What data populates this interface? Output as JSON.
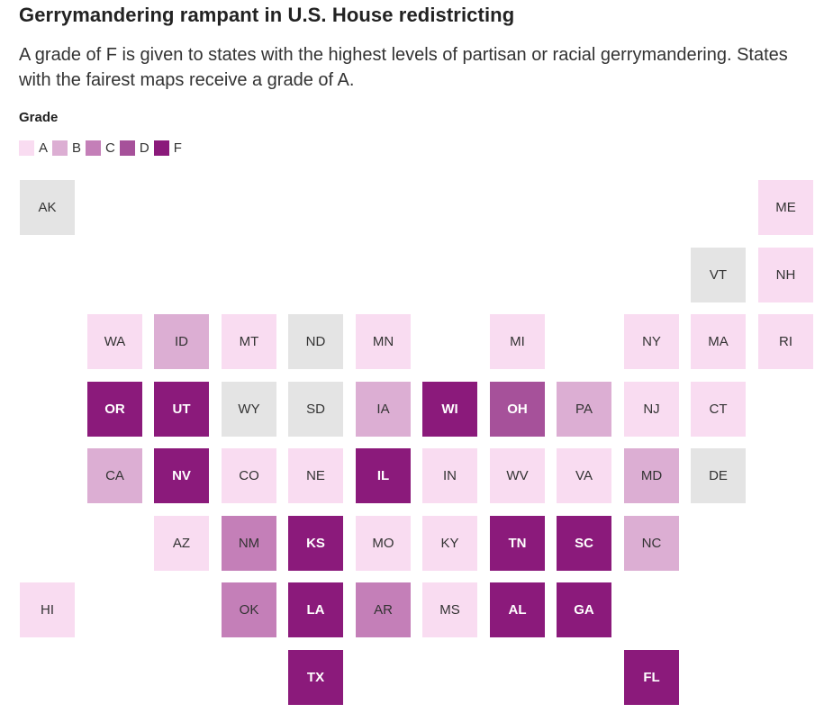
{
  "title": "Gerrymandering rampant in U.S. House redistricting",
  "subtitle": "A grade of F is given to states with the highest levels of partisan or racial gerrymandering. States with the fairest maps receive a grade of A.",
  "legend": {
    "title": "Grade",
    "items": [
      {
        "label": "A",
        "color": "#f9dcf1"
      },
      {
        "label": "B",
        "color": "#dcaed3"
      },
      {
        "label": "C",
        "color": "#c47fb8"
      },
      {
        "label": "D",
        "color": "#a6519a"
      },
      {
        "label": "F",
        "color": "#8b1a7b"
      }
    ]
  },
  "no_grade_color": "#e4e4e4",
  "states": [
    {
      "abbr": "AK",
      "row": 0,
      "col": 0,
      "grade": null
    },
    {
      "abbr": "ME",
      "row": 0,
      "col": 11,
      "grade": "A"
    },
    {
      "abbr": "VT",
      "row": 1,
      "col": 10,
      "grade": null
    },
    {
      "abbr": "NH",
      "row": 1,
      "col": 11,
      "grade": "A"
    },
    {
      "abbr": "WA",
      "row": 2,
      "col": 1,
      "grade": "A"
    },
    {
      "abbr": "ID",
      "row": 2,
      "col": 2,
      "grade": "B"
    },
    {
      "abbr": "MT",
      "row": 2,
      "col": 3,
      "grade": "A"
    },
    {
      "abbr": "ND",
      "row": 2,
      "col": 4,
      "grade": null
    },
    {
      "abbr": "MN",
      "row": 2,
      "col": 5,
      "grade": "A"
    },
    {
      "abbr": "MI",
      "row": 2,
      "col": 7,
      "grade": "A"
    },
    {
      "abbr": "NY",
      "row": 2,
      "col": 9,
      "grade": "A"
    },
    {
      "abbr": "MA",
      "row": 2,
      "col": 10,
      "grade": "A"
    },
    {
      "abbr": "RI",
      "row": 2,
      "col": 11,
      "grade": "A"
    },
    {
      "abbr": "OR",
      "row": 3,
      "col": 1,
      "grade": "F"
    },
    {
      "abbr": "UT",
      "row": 3,
      "col": 2,
      "grade": "F"
    },
    {
      "abbr": "WY",
      "row": 3,
      "col": 3,
      "grade": null
    },
    {
      "abbr": "SD",
      "row": 3,
      "col": 4,
      "grade": null
    },
    {
      "abbr": "IA",
      "row": 3,
      "col": 5,
      "grade": "B"
    },
    {
      "abbr": "WI",
      "row": 3,
      "col": 6,
      "grade": "F"
    },
    {
      "abbr": "OH",
      "row": 3,
      "col": 7,
      "grade": "D"
    },
    {
      "abbr": "PA",
      "row": 3,
      "col": 8,
      "grade": "B"
    },
    {
      "abbr": "NJ",
      "row": 3,
      "col": 9,
      "grade": "A"
    },
    {
      "abbr": "CT",
      "row": 3,
      "col": 10,
      "grade": "A"
    },
    {
      "abbr": "CA",
      "row": 4,
      "col": 1,
      "grade": "B"
    },
    {
      "abbr": "NV",
      "row": 4,
      "col": 2,
      "grade": "F"
    },
    {
      "abbr": "CO",
      "row": 4,
      "col": 3,
      "grade": "A"
    },
    {
      "abbr": "NE",
      "row": 4,
      "col": 4,
      "grade": "A"
    },
    {
      "abbr": "IL",
      "row": 4,
      "col": 5,
      "grade": "F"
    },
    {
      "abbr": "IN",
      "row": 4,
      "col": 6,
      "grade": "A"
    },
    {
      "abbr": "WV",
      "row": 4,
      "col": 7,
      "grade": "A"
    },
    {
      "abbr": "VA",
      "row": 4,
      "col": 8,
      "grade": "A"
    },
    {
      "abbr": "MD",
      "row": 4,
      "col": 9,
      "grade": "B"
    },
    {
      "abbr": "DE",
      "row": 4,
      "col": 10,
      "grade": null
    },
    {
      "abbr": "AZ",
      "row": 5,
      "col": 2,
      "grade": "A"
    },
    {
      "abbr": "NM",
      "row": 5,
      "col": 3,
      "grade": "C"
    },
    {
      "abbr": "KS",
      "row": 5,
      "col": 4,
      "grade": "F"
    },
    {
      "abbr": "MO",
      "row": 5,
      "col": 5,
      "grade": "A"
    },
    {
      "abbr": "KY",
      "row": 5,
      "col": 6,
      "grade": "A"
    },
    {
      "abbr": "TN",
      "row": 5,
      "col": 7,
      "grade": "F"
    },
    {
      "abbr": "SC",
      "row": 5,
      "col": 8,
      "grade": "F"
    },
    {
      "abbr": "NC",
      "row": 5,
      "col": 9,
      "grade": "B"
    },
    {
      "abbr": "HI",
      "row": 6,
      "col": 0,
      "grade": "A"
    },
    {
      "abbr": "OK",
      "row": 6,
      "col": 3,
      "grade": "C"
    },
    {
      "abbr": "LA",
      "row": 6,
      "col": 4,
      "grade": "F"
    },
    {
      "abbr": "AR",
      "row": 6,
      "col": 5,
      "grade": "C"
    },
    {
      "abbr": "MS",
      "row": 6,
      "col": 6,
      "grade": "A"
    },
    {
      "abbr": "AL",
      "row": 6,
      "col": 7,
      "grade": "F"
    },
    {
      "abbr": "GA",
      "row": 6,
      "col": 8,
      "grade": "F"
    },
    {
      "abbr": "TX",
      "row": 7,
      "col": 4,
      "grade": "F"
    },
    {
      "abbr": "FL",
      "row": 7,
      "col": 9,
      "grade": "F"
    }
  ]
}
